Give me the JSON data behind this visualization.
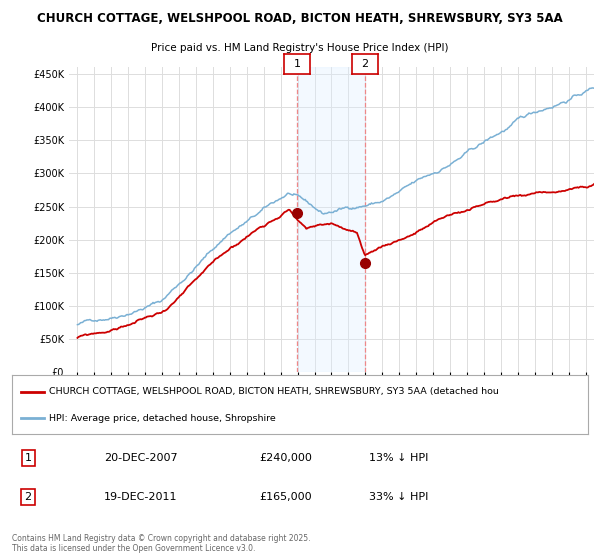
{
  "title1": "CHURCH COTTAGE, WELSHPOOL ROAD, BICTON HEATH, SHREWSBURY, SY3 5AA",
  "title2": "Price paid vs. HM Land Registry's House Price Index (HPI)",
  "legend_label1": "CHURCH COTTAGE, WELSHPOOL ROAD, BICTON HEATH, SHREWSBURY, SY3 5AA (detached hou",
  "legend_label2": "HPI: Average price, detached house, Shropshire",
  "footer": "Contains HM Land Registry data © Crown copyright and database right 2025.\nThis data is licensed under the Open Government Licence v3.0.",
  "annotation1": {
    "label": "1",
    "date": "20-DEC-2007",
    "price": "£240,000",
    "hpi": "13% ↓ HPI"
  },
  "annotation2": {
    "label": "2",
    "date": "19-DEC-2011",
    "price": "£165,000",
    "hpi": "33% ↓ HPI"
  },
  "ann1_year": 2007.97,
  "ann1_price": 240000,
  "ann2_year": 2011.97,
  "ann2_price": 165000,
  "ylim": [
    0,
    460000
  ],
  "xlim_left": 1994.5,
  "xlim_right": 2025.5,
  "yticks": [
    0,
    50000,
    100000,
    150000,
    200000,
    250000,
    300000,
    350000,
    400000,
    450000
  ],
  "bg_color": "#ffffff",
  "plot_bg_color": "#ffffff",
  "grid_color": "#dddddd",
  "hpi_color": "#7ab0d4",
  "price_color": "#cc0000",
  "highlight_color": "#ddeeff",
  "highlight_alpha": 0.35,
  "vline_color": "#ee8888",
  "vline_style": "--",
  "marker_color": "#990000"
}
